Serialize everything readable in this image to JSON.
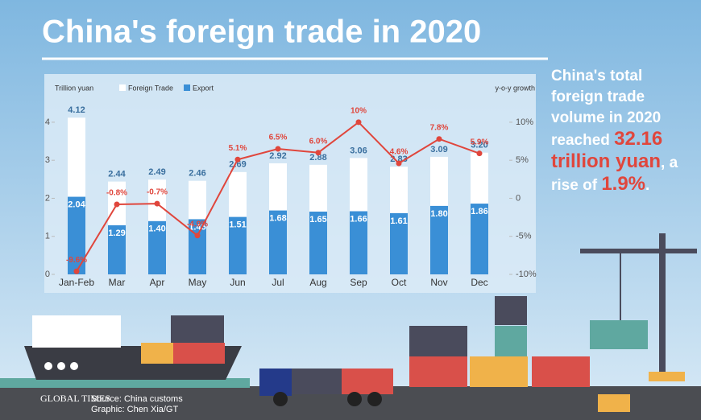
{
  "header": {
    "title": "China's foreign trade in 2020"
  },
  "summary": {
    "lead": "China's total foreign trade volume in 2020 reached",
    "amount": "32.16 trillion yuan",
    "comma": ",",
    "rise_text": "a rise of",
    "rise": "1.9%",
    "period": "."
  },
  "footer": {
    "logo": "GLOBAL TIMES",
    "source": "Source: China customs",
    "graphic": "Graphic: Chen Xia/GT"
  },
  "chart_data": {
    "type": "bar",
    "ylabel": "Trillion yuan",
    "y2label": "y-o-y growth",
    "categories": [
      "Jan-Feb",
      "Mar",
      "Apr",
      "May",
      "Jun",
      "Jul",
      "Aug",
      "Sep",
      "Oct",
      "Nov",
      "Dec"
    ],
    "series": [
      {
        "name": "Foreign Trade",
        "color": "#ffffff",
        "type": "bar",
        "values": [
          4.12,
          2.44,
          2.49,
          2.46,
          2.69,
          2.92,
          2.88,
          3.06,
          2.83,
          3.09,
          3.2
        ],
        "value_labels": [
          "4.12",
          "2.44",
          "2.49",
          "2.46",
          "2.69",
          "2.92",
          "2.88",
          "3.06",
          "2.83",
          "3.09",
          "3.20"
        ]
      },
      {
        "name": "Export",
        "color": "#3a8fd6",
        "type": "bar",
        "values": [
          2.04,
          1.29,
          1.4,
          1.45,
          1.51,
          1.68,
          1.65,
          1.66,
          1.61,
          1.8,
          1.86
        ],
        "value_labels": [
          "2.04",
          "1.29",
          "1.40",
          "1.45",
          "1.51",
          "1.68",
          "1.65",
          "1.66",
          "1.61",
          "1.80",
          "1.86"
        ]
      },
      {
        "color": "#e0463c",
        "type": "line",
        "axis": "y2",
        "values": [
          -9.6,
          -0.8,
          -0.7,
          -4.9,
          5.1,
          6.5,
          6.0,
          10,
          4.6,
          7.8,
          5.9
        ],
        "value_labels": [
          "-9.6%",
          "-0.8%",
          "-0.7%",
          "-4.9%",
          "5.1%",
          "6.5%",
          "6.0%",
          "10%",
          "4.6%",
          "7.8%",
          "5.9%"
        ]
      }
    ],
    "ylim": [
      0,
      4.4
    ],
    "yticks": [
      0,
      1,
      2,
      3,
      4
    ],
    "y2lim": [
      -10,
      12
    ],
    "y2ticks": [
      {
        "value": -10,
        "label": "-10%"
      },
      {
        "value": -5,
        "label": "-5%"
      },
      0,
      {
        "value": 5,
        "label": "5%"
      },
      {
        "value": 10,
        "label": "10%"
      }
    ]
  }
}
